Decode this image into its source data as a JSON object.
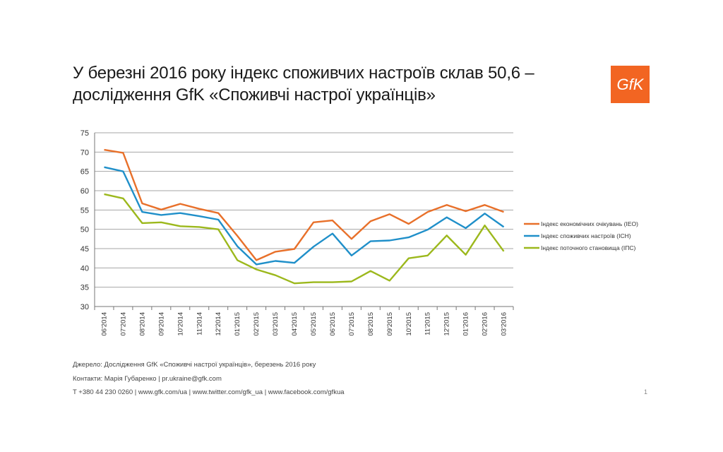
{
  "title_line1": "У березні 2016 року індекс споживчих настроїв склав 50,6 –",
  "title_line2": "дослідження GfK «Споживчі настрої українців»",
  "logo_text": "GfK",
  "footer": {
    "source": "Джерело: Дослідження GfK «Споживчі настрої українців», березень 2016 року",
    "contacts": "Контакти: Марія Губаренко | pr.ukraine@gfk.com",
    "links": "T +380 44 230 0260 | www.gfk.com/ua | www.twitter.com/gfk_ua | www.facebook.com/gfkua"
  },
  "page_number": "1",
  "chart_data": {
    "type": "line",
    "x": [
      "06'2014",
      "07'2014",
      "08'2014",
      "09'2014",
      "10'2014",
      "11'2014",
      "12'2014",
      "01'2015",
      "02'2015",
      "03'2015",
      "04'2015",
      "05'2015",
      "06'2015",
      "07'2015",
      "08'2015",
      "09'2015",
      "10'2015",
      "11'2015",
      "12'2015",
      "01'2016",
      "02'2016",
      "03'2016"
    ],
    "ylim": [
      30,
      75
    ],
    "yticks": [
      30,
      35,
      40,
      45,
      50,
      55,
      60,
      65,
      70,
      75
    ],
    "grid": true,
    "legend_position": "right",
    "series": [
      {
        "name": "Індекс економічних очікувань (ІЕО)",
        "color": "#e8702a",
        "values": [
          70.6,
          69.8,
          56.7,
          55.1,
          56.6,
          55.3,
          54.2,
          48.3,
          42.0,
          44.2,
          44.9,
          51.8,
          52.3,
          47.5,
          52.1,
          53.9,
          51.4,
          54.5,
          56.3,
          54.7,
          56.3,
          54.5
        ]
      },
      {
        "name": "Індекс споживчих настроїв (ІСН)",
        "color": "#1f8fc9",
        "values": [
          66.1,
          65.0,
          54.5,
          53.7,
          54.2,
          53.4,
          52.5,
          45.6,
          40.9,
          41.8,
          41.3,
          45.5,
          48.9,
          43.2,
          46.9,
          47.1,
          47.9,
          49.9,
          53.1,
          50.3,
          54.1,
          50.6
        ]
      },
      {
        "name": "Індекс поточного становища (ІПС)",
        "color": "#9cb81c",
        "values": [
          59.1,
          58.0,
          51.6,
          51.8,
          50.8,
          50.6,
          50.0,
          42.0,
          39.6,
          38.1,
          36.0,
          36.3,
          36.3,
          36.5,
          39.2,
          36.7,
          42.5,
          43.2,
          48.4,
          43.4,
          51.0,
          44.3
        ]
      }
    ]
  }
}
